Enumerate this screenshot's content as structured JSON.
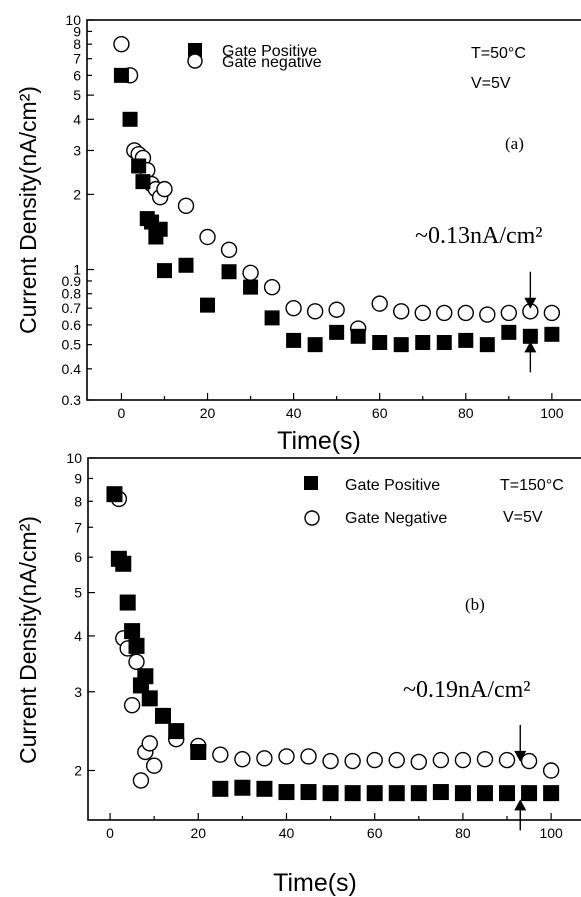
{
  "chart_data": [
    {
      "type": "scatter",
      "panel_label": "(a)",
      "conditions": [
        "T=50°C",
        "V=5V"
      ],
      "xlabel": "Time(s)",
      "ylabel": "Current Density(nA/cm²)",
      "xlim": [
        -8,
        107
      ],
      "ylim": [
        0.3,
        10
      ],
      "yscale": "log",
      "x_ticks": [
        0,
        20,
        40,
        60,
        80,
        100
      ],
      "y_ticks": [
        0.3,
        0.4,
        0.5,
        0.6,
        0.7,
        0.8,
        0.9,
        1,
        2,
        3,
        4,
        5,
        6,
        7,
        8,
        9,
        10
      ],
      "y_tick_labels": [
        "0.3",
        "0.4",
        "0.5",
        "0.6",
        "0.7",
        "0.8",
        "0.9",
        "1",
        "2",
        "3",
        "4",
        "5",
        "6",
        "7",
        "8",
        "9",
        "10"
      ],
      "legend_position": "top-center",
      "annotation": {
        "text": "~0.13nA/cm²",
        "x": 95,
        "arrow_top_y": 0.69,
        "arrow_bottom_y": 0.53
      },
      "series": [
        {
          "name": "Gate Positive",
          "marker": "filled-square",
          "x": [
            0,
            2,
            4,
            5,
            6,
            7,
            8,
            9,
            10,
            15,
            20,
            25,
            30,
            35,
            40,
            45,
            50,
            55,
            60,
            65,
            70,
            75,
            80,
            85,
            90,
            95,
            100
          ],
          "y": [
            6.0,
            4.0,
            2.6,
            2.25,
            1.6,
            1.55,
            1.35,
            1.45,
            0.99,
            1.04,
            0.72,
            0.98,
            0.85,
            0.64,
            0.52,
            0.5,
            0.56,
            0.54,
            0.51,
            0.5,
            0.51,
            0.51,
            0.52,
            0.5,
            0.56,
            0.54,
            0.55
          ]
        },
        {
          "name": "Gate negative",
          "marker": "open-circle",
          "x": [
            0,
            2,
            3,
            4,
            5,
            6,
            7,
            8,
            9,
            10,
            15,
            20,
            25,
            30,
            35,
            40,
            45,
            50,
            55,
            60,
            65,
            70,
            75,
            80,
            85,
            90,
            95,
            100
          ],
          "y": [
            8.0,
            6.0,
            3.0,
            2.9,
            2.8,
            2.5,
            2.2,
            2.1,
            1.95,
            2.1,
            1.8,
            1.35,
            1.2,
            0.97,
            0.85,
            0.7,
            0.68,
            0.69,
            0.58,
            0.73,
            0.68,
            0.67,
            0.67,
            0.67,
            0.66,
            0.67,
            0.68,
            0.67
          ]
        }
      ]
    },
    {
      "type": "scatter",
      "panel_label": "(b)",
      "conditions": [
        "T=150°C",
        "V=5V"
      ],
      "xlabel": "Time(s)",
      "ylabel": "Current Density(nA/cm²)",
      "xlim": [
        -5,
        107
      ],
      "ylim": [
        1.55,
        10
      ],
      "yscale": "log",
      "x_ticks": [
        0,
        20,
        40,
        60,
        80,
        100
      ],
      "y_ticks": [
        2,
        3,
        4,
        5,
        6,
        7,
        8,
        9,
        10
      ],
      "y_tick_labels": [
        "2",
        "3",
        "4",
        "5",
        "6",
        "7",
        "8",
        "9",
        "10"
      ],
      "legend_position": "top-center",
      "annotation": {
        "text": "~0.19nA/cm²",
        "x": 93,
        "arrow_top_y": 2.08,
        "arrow_bottom_y": 1.75
      },
      "series": [
        {
          "name": "Gate Positive",
          "marker": "filled-square",
          "x": [
            1,
            2,
            3,
            4,
            5,
            6,
            7,
            8,
            9,
            12,
            15,
            20,
            25,
            30,
            35,
            40,
            45,
            50,
            55,
            60,
            65,
            70,
            75,
            80,
            85,
            90,
            95,
            100
          ],
          "y": [
            8.3,
            5.95,
            5.8,
            4.75,
            4.1,
            3.8,
            3.1,
            3.25,
            2.9,
            2.65,
            2.45,
            2.2,
            1.82,
            1.83,
            1.82,
            1.79,
            1.79,
            1.78,
            1.78,
            1.78,
            1.78,
            1.78,
            1.79,
            1.78,
            1.78,
            1.78,
            1.78,
            1.78
          ]
        },
        {
          "name": "Gate Negative",
          "marker": "open-circle",
          "x": [
            2,
            3,
            4,
            5,
            6,
            7,
            8,
            9,
            10,
            15,
            20,
            25,
            30,
            35,
            40,
            45,
            50,
            55,
            60,
            65,
            70,
            75,
            80,
            85,
            90,
            95,
            100
          ],
          "y": [
            8.1,
            3.95,
            3.75,
            2.8,
            3.5,
            1.9,
            2.2,
            2.3,
            2.05,
            2.35,
            2.27,
            2.17,
            2.12,
            2.13,
            2.15,
            2.15,
            2.1,
            2.1,
            2.11,
            2.11,
            2.09,
            2.11,
            2.11,
            2.12,
            2.11,
            2.1,
            2.0
          ]
        }
      ]
    }
  ]
}
